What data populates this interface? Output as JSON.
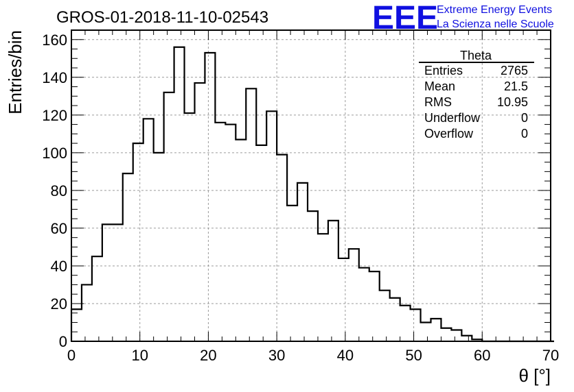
{
  "chart_data": {
    "type": "bar",
    "title": "GROS-01-2018-11-10-02543",
    "xlabel": "θ [°]",
    "ylabel": "Entries/bin",
    "xlim": [
      0,
      70
    ],
    "ylim": [
      0,
      165
    ],
    "grid": true,
    "x_ticks": [
      0,
      10,
      20,
      30,
      40,
      50,
      60,
      70
    ],
    "y_ticks": [
      0,
      20,
      40,
      60,
      80,
      100,
      120,
      140,
      160
    ],
    "bin_width": 1.5,
    "bin_start": 0,
    "values": [
      17,
      30,
      45,
      62,
      62,
      89,
      105,
      118,
      100,
      132,
      156,
      121,
      137,
      153,
      116,
      115,
      107,
      134,
      104,
      122,
      99,
      72,
      84,
      69,
      57,
      64,
      44,
      49,
      39,
      37,
      27,
      23,
      19,
      17,
      10,
      12,
      7,
      6,
      3,
      1,
      0,
      0,
      0,
      0,
      0,
      0,
      0
    ],
    "stats_box": {
      "name": "Theta",
      "rows": [
        {
          "label": "Entries",
          "value": "2765"
        },
        {
          "label": "Mean",
          "value": "21.5"
        },
        {
          "label": "RMS",
          "value": "10.95"
        },
        {
          "label": "Underflow",
          "value": "0"
        },
        {
          "label": "Overflow",
          "value": "0"
        }
      ]
    },
    "logo": {
      "mark": "EEE",
      "line1": "Extreme Energy Events",
      "line2": "La Scienza nelle Scuole",
      "color": "#1010e0"
    }
  }
}
